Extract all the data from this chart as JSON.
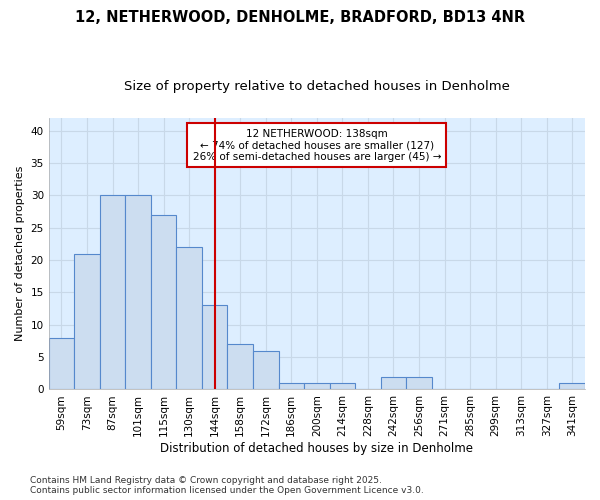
{
  "title_line1": "12, NETHERWOOD, DENHOLME, BRADFORD, BD13 4NR",
  "title_line2": "Size of property relative to detached houses in Denholme",
  "xlabel": "Distribution of detached houses by size in Denholme",
  "ylabel": "Number of detached properties",
  "bar_labels": [
    "59sqm",
    "73sqm",
    "87sqm",
    "101sqm",
    "115sqm",
    "130sqm",
    "144sqm",
    "158sqm",
    "172sqm",
    "186sqm",
    "200sqm",
    "214sqm",
    "228sqm",
    "242sqm",
    "256sqm",
    "271sqm",
    "285sqm",
    "299sqm",
    "313sqm",
    "327sqm",
    "341sqm"
  ],
  "bar_values": [
    8,
    21,
    30,
    30,
    27,
    22,
    13,
    7,
    6,
    1,
    1,
    1,
    0,
    2,
    2,
    0,
    0,
    0,
    0,
    0,
    1
  ],
  "bar_color": "#ccddf0",
  "bar_edgecolor": "#5588cc",
  "bar_linewidth": 0.8,
  "red_line_x": 6.0,
  "annotation_text": "12 NETHERWOOD: 138sqm\n← 74% of detached houses are smaller (127)\n26% of semi-detached houses are larger (45) →",
  "annotation_box_facecolor": "#ffffff",
  "annotation_box_edgecolor": "#cc0000",
  "ylim": [
    0,
    42
  ],
  "yticks": [
    0,
    5,
    10,
    15,
    20,
    25,
    30,
    35,
    40
  ],
  "fig_background": "#ffffff",
  "plot_background": "#ddeeff",
  "grid_color": "#c8d8e8",
  "footer_text": "Contains HM Land Registry data © Crown copyright and database right 2025.\nContains public sector information licensed under the Open Government Licence v3.0.",
  "title_fontsize": 10.5,
  "subtitle_fontsize": 9.5,
  "xlabel_fontsize": 8.5,
  "ylabel_fontsize": 8,
  "tick_fontsize": 7.5,
  "annotation_fontsize": 7.5,
  "footer_fontsize": 6.5
}
